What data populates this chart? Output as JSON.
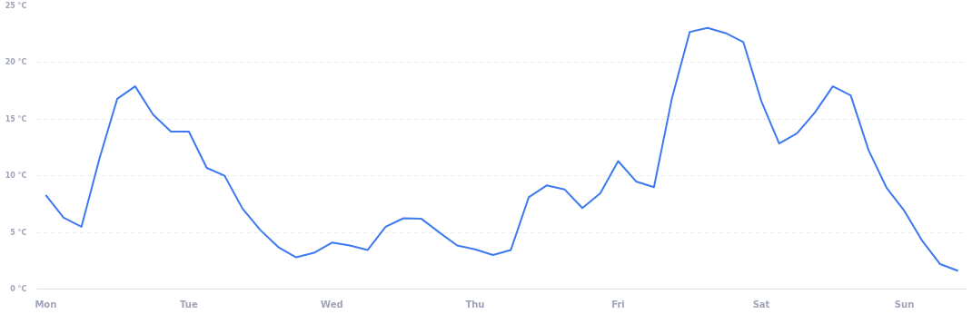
{
  "chart_data": {
    "type": "line",
    "categories": [
      "Mon",
      null,
      null,
      null,
      null,
      null,
      null,
      null,
      "Tue",
      null,
      null,
      null,
      null,
      null,
      null,
      null,
      "Wed",
      null,
      null,
      null,
      null,
      null,
      null,
      null,
      "Thu",
      null,
      null,
      null,
      null,
      null,
      null,
      null,
      "Fri",
      null,
      null,
      null,
      null,
      null,
      null,
      null,
      "Sat",
      null,
      null,
      null,
      null,
      null,
      null,
      null,
      "Sun",
      null,
      null,
      null
    ],
    "series": [
      {
        "color": "#3d7af0",
        "values": [
          8.3,
          6.3,
          5.5,
          11.5,
          16.8,
          17.9,
          15.4,
          13.9,
          13.9,
          10.7,
          10.0,
          7.1,
          5.2,
          3.7,
          2.8,
          3.2,
          4.1,
          3.85,
          3.45,
          5.5,
          6.25,
          6.2,
          5.0,
          3.85,
          3.5,
          3.0,
          3.45,
          8.1,
          9.15,
          8.8,
          7.15,
          8.45,
          11.3,
          9.5,
          9.0,
          16.8,
          22.7,
          23.05,
          22.6,
          21.8,
          16.6,
          12.85,
          13.75,
          15.6,
          17.9,
          17.1,
          12.25,
          8.95,
          6.9,
          4.25,
          2.2,
          1.6
        ]
      }
    ],
    "ylim": [
      0,
      25
    ],
    "yticks": [
      {
        "value": 0,
        "label": "0 °C"
      },
      {
        "value": 5,
        "label": "5 °C"
      },
      {
        "value": 10,
        "label": "10 °C"
      },
      {
        "value": 15,
        "label": "15 °C"
      },
      {
        "value": 20,
        "label": "20 °C"
      },
      {
        "value": 25,
        "label": "25 °C"
      }
    ],
    "grid": "y",
    "marker": "none",
    "line_style": "solid"
  }
}
